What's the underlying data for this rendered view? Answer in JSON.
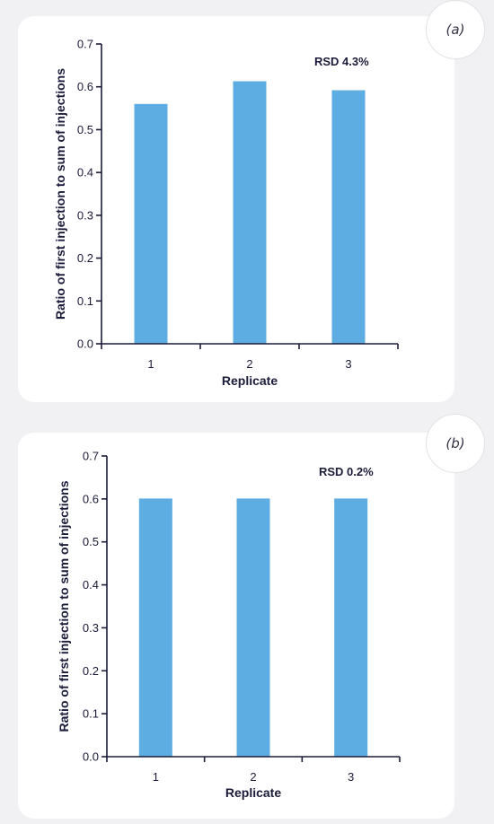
{
  "colors": {
    "bar": "#5dade2",
    "axis": "#1b1b3a"
  },
  "chart_data": [
    {
      "type": "bar",
      "panel_label": "(a)",
      "annotation": "RSD 4.3%",
      "categories": [
        "1",
        "2",
        "3"
      ],
      "values": [
        0.56,
        0.613,
        0.592
      ],
      "xlabel": "Replicate",
      "ylabel": "Ratio of first injection to sum of injections",
      "ylim": [
        0,
        0.7
      ],
      "yticks": [
        "0.0",
        "0.1",
        "0.2",
        "0.3",
        "0.4",
        "0.5",
        "0.6",
        "0.7"
      ],
      "grid": false,
      "legend": "none"
    },
    {
      "type": "bar",
      "panel_label": "(b)",
      "annotation": "RSD 0.2%",
      "categories": [
        "1",
        "2",
        "3"
      ],
      "values": [
        0.601,
        0.601,
        0.601
      ],
      "xlabel": "Replicate",
      "ylabel": "Ratio of first injection to sum of injections",
      "ylim": [
        0,
        0.7
      ],
      "yticks": [
        "0.0",
        "0.1",
        "0.2",
        "0.3",
        "0.4",
        "0.5",
        "0.6",
        "0.7"
      ],
      "grid": false,
      "legend": "none"
    }
  ]
}
